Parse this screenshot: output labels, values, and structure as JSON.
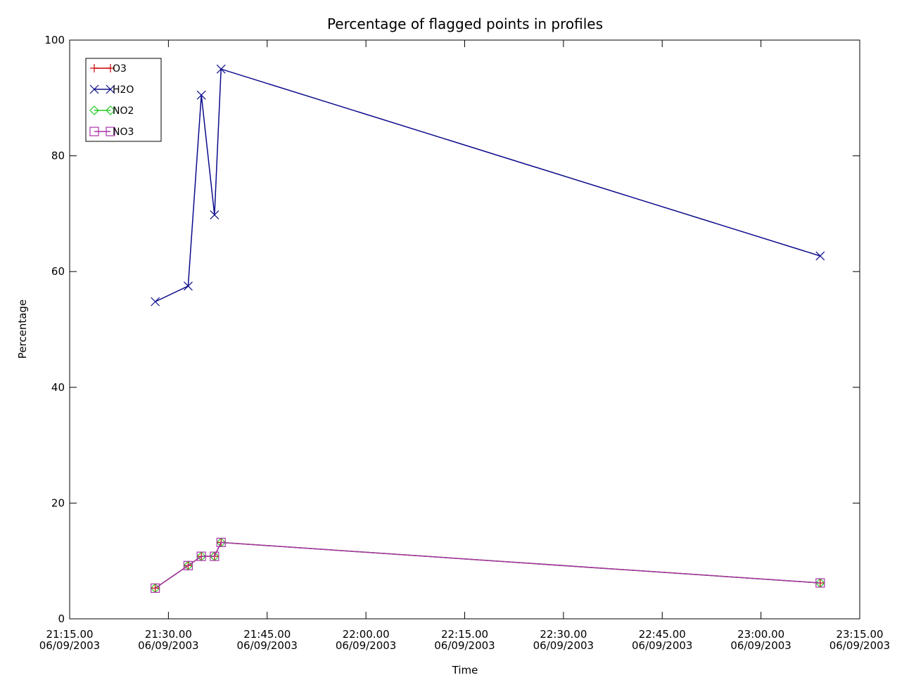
{
  "chart_data": {
    "type": "line",
    "title": "Percentage of flagged points in profiles",
    "xlabel": "Time",
    "ylabel": "Percentage",
    "xlim": [
      "2003-06-09 21:15",
      "2003-06-09 23:15"
    ],
    "ylim": [
      0,
      100
    ],
    "y_ticks": [
      0,
      20,
      40,
      60,
      80,
      100
    ],
    "x_ticks": [
      {
        "time": "2003-06-09 21:15",
        "line1": "21:15.00",
        "line2": "06/09/2003"
      },
      {
        "time": "2003-06-09 21:30",
        "line1": "21:30.00",
        "line2": "06/09/2003"
      },
      {
        "time": "2003-06-09 21:45",
        "line1": "21:45.00",
        "line2": "06/09/2003"
      },
      {
        "time": "2003-06-09 22:00",
        "line1": "22:00.00",
        "line2": "06/09/2003"
      },
      {
        "time": "2003-06-09 22:15",
        "line1": "22:15.00",
        "line2": "06/09/2003"
      },
      {
        "time": "2003-06-09 22:30",
        "line1": "22:30.00",
        "line2": "06/09/2003"
      },
      {
        "time": "2003-06-09 22:45",
        "line1": "22:45.00",
        "line2": "06/09/2003"
      },
      {
        "time": "2003-06-09 23:00",
        "line1": "23:00.00",
        "line2": "06/09/2003"
      },
      {
        "time": "2003-06-09 23:15",
        "line1": "23:15.00",
        "line2": "06/09/2003"
      }
    ],
    "grid": false,
    "legend_position": "top-left",
    "series": [
      {
        "name": "O3",
        "color": "#cc0000",
        "marker": "plus",
        "x": [
          "2003-06-09 21:28",
          "2003-06-09 21:33",
          "2003-06-09 21:35",
          "2003-06-09 21:37",
          "2003-06-09 21:38",
          "2003-06-09 23:09"
        ],
        "y": [
          5.3,
          9.2,
          10.8,
          10.8,
          13.2,
          6.2
        ]
      },
      {
        "name": "H2O",
        "color": "#0a0a8c",
        "marker": "cross",
        "x": [
          "2003-06-09 21:28",
          "2003-06-09 21:33",
          "2003-06-09 21:35",
          "2003-06-09 21:37",
          "2003-06-09 21:38",
          "2003-06-09 23:09"
        ],
        "y": [
          54.8,
          57.5,
          90.5,
          69.8,
          95.0,
          62.7
        ]
      },
      {
        "name": "NO2",
        "color": "#22cc22",
        "marker": "diamond",
        "x": [
          "2003-06-09 21:28",
          "2003-06-09 21:33",
          "2003-06-09 21:35",
          "2003-06-09 21:37",
          "2003-06-09 21:38",
          "2003-06-09 23:09"
        ],
        "y": [
          5.3,
          9.2,
          10.8,
          10.8,
          13.2,
          6.2
        ]
      },
      {
        "name": "NO3",
        "color": "#aa33aa",
        "marker": "square",
        "x": [
          "2003-06-09 21:28",
          "2003-06-09 21:33",
          "2003-06-09 21:35",
          "2003-06-09 21:37",
          "2003-06-09 21:38",
          "2003-06-09 23:09"
        ],
        "y": [
          5.3,
          9.2,
          10.8,
          10.8,
          13.2,
          6.2
        ]
      }
    ]
  }
}
